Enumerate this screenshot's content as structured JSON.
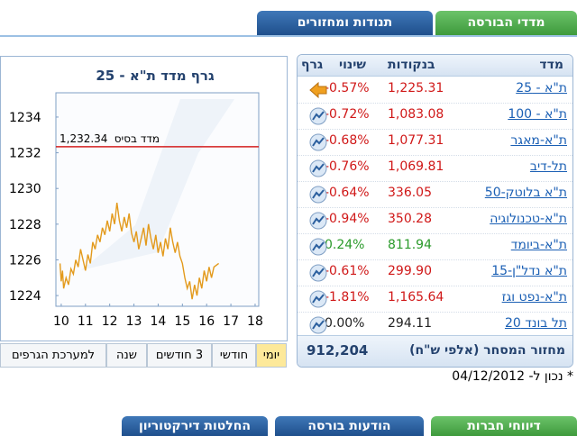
{
  "tabs_top": [
    "מדדי הבורסה",
    "תנודות ומחזורים"
  ],
  "chart_data": {
    "type": "line",
    "title": "גרף מדד ת\"א - 25",
    "color": "#e39a1c",
    "base_line": {
      "label": "מדד בסיס",
      "value": 1232.34,
      "value_label": "1,232.34",
      "color": "#d42020"
    },
    "x": [
      9.95,
      10.0,
      10.05,
      10.1,
      10.2,
      10.3,
      10.4,
      10.5,
      10.6,
      10.7,
      10.8,
      10.9,
      11.0,
      11.1,
      11.2,
      11.3,
      11.4,
      11.5,
      11.6,
      11.7,
      11.8,
      11.9,
      12.0,
      12.1,
      12.2,
      12.3,
      12.4,
      12.5,
      12.6,
      12.7,
      12.8,
      12.9,
      13.0,
      13.1,
      13.2,
      13.3,
      13.4,
      13.5,
      13.6,
      13.7,
      13.8,
      13.9,
      14.0,
      14.1,
      14.2,
      14.3,
      14.4,
      14.5,
      14.6,
      14.7,
      14.8,
      14.9,
      15.0,
      15.1,
      15.2,
      15.3,
      15.4,
      15.5,
      15.6,
      15.7,
      15.8,
      15.9,
      16.0,
      16.1,
      16.2,
      16.3,
      16.5
    ],
    "values": [
      1225.8,
      1224.8,
      1225.4,
      1224.4,
      1225.0,
      1224.6,
      1225.5,
      1225.2,
      1226.0,
      1225.6,
      1226.6,
      1226.0,
      1225.4,
      1226.3,
      1225.8,
      1227.0,
      1226.6,
      1227.4,
      1227.0,
      1227.8,
      1227.4,
      1228.2,
      1227.6,
      1228.6,
      1228.0,
      1229.2,
      1228.2,
      1227.6,
      1228.4,
      1227.8,
      1228.6,
      1227.5,
      1227.0,
      1227.6,
      1226.6,
      1227.2,
      1227.8,
      1226.8,
      1228.0,
      1227.2,
      1226.6,
      1227.4,
      1226.4,
      1227.0,
      1226.2,
      1227.2,
      1226.6,
      1227.8,
      1227.0,
      1226.4,
      1227.0,
      1226.2,
      1225.8,
      1225.0,
      1224.4,
      1224.8,
      1223.8,
      1224.6,
      1224.0,
      1225.0,
      1224.4,
      1225.4,
      1224.8,
      1225.6,
      1225.0,
      1225.6,
      1225.8
    ],
    "xlim": [
      9.78,
      18.15
    ],
    "xticks": [
      10,
      11,
      12,
      13,
      14,
      15,
      16,
      17,
      18
    ],
    "ylim": [
      1223.4,
      1235.36
    ],
    "yticks": [
      1224,
      1226,
      1228,
      1230,
      1232,
      1234
    ]
  },
  "range_buttons": [
    "יומי",
    "חודשי",
    "3 חודשים",
    "שנה",
    "למערכת הגרפים"
  ],
  "table": {
    "headers": [
      "מדד",
      "בנקודות",
      "שינוי",
      "גרף"
    ],
    "rows": [
      [
        "ת\"א - 25",
        "1,225.31",
        "-0.57%"
      ],
      [
        "ת\"א - 100",
        "1,083.08",
        "-0.72%"
      ],
      [
        "ת\"א-מאגר",
        "1,077.31",
        "-0.68%"
      ],
      [
        "תל-דיב",
        "1,069.81",
        "-0.76%"
      ],
      [
        "ת\"א בלוטק-50",
        "336.05",
        "-0.64%"
      ],
      [
        "ת\"א-טכנולוגיה",
        "350.28",
        "-0.94%"
      ],
      [
        "ת\"א-ביומד",
        "811.94",
        "0.24%"
      ],
      [
        "ת\"א נדל\"ן-15",
        "299.90",
        "-0.61%"
      ],
      [
        "ת\"א-נפט וגז",
        "1,165.64",
        "-1.81%"
      ],
      [
        "תל בונד 20",
        "294.11",
        "0.00%"
      ]
    ]
  },
  "turnover": {
    "label": "מחזור המסחר (אלפי ש\"ח)",
    "value": "912,204"
  },
  "as_of": "* נכון ל- 04/12/2012",
  "tabs_bottom": [
    "דיווחי חברות",
    "הודעות בורסה",
    "החלטות דירקטוריון"
  ]
}
